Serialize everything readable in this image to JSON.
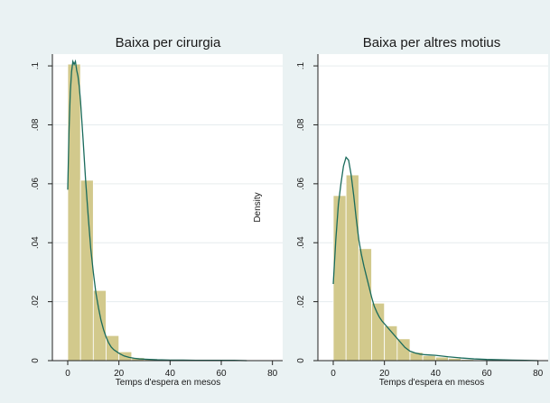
{
  "chart_data": [
    {
      "type": "bar",
      "title": "Baixa per cirurgia",
      "xlabel": "Temps d'espera en mesos",
      "ylabel": "",
      "xlim": [
        -6,
        84
      ],
      "ylim": [
        0,
        0.104
      ],
      "xticks": [
        0,
        20,
        40,
        60,
        80
      ],
      "xtick_labels": [
        "0",
        "20",
        "40",
        "60",
        "80"
      ],
      "yticks": [
        0,
        0.02,
        0.04,
        0.06,
        0.08,
        0.1
      ],
      "ytick_labels": [
        "0",
        ".02",
        ".04",
        ".06",
        ".08",
        ".1"
      ],
      "grid": true,
      "bin_width": 5,
      "bins": [
        {
          "x0": 0,
          "x1": 5,
          "value": 0.1006
        },
        {
          "x0": 5,
          "x1": 10,
          "value": 0.0612
        },
        {
          "x0": 10,
          "x1": 15,
          "value": 0.0238
        },
        {
          "x0": 15,
          "x1": 20,
          "value": 0.0085
        },
        {
          "x0": 20,
          "x1": 25,
          "value": 0.003
        },
        {
          "x0": 25,
          "x1": 30,
          "value": 0.001
        },
        {
          "x0": 30,
          "x1": 35,
          "value": 0.0006
        },
        {
          "x0": 35,
          "x1": 40,
          "value": 0.0004
        },
        {
          "x0": 40,
          "x1": 45,
          "value": 0.0003
        },
        {
          "x0": 45,
          "x1": 50,
          "value": 0.0002
        },
        {
          "x0": 50,
          "x1": 55,
          "value": 0.0001
        },
        {
          "x0": 55,
          "x1": 60,
          "value": 0.0001
        },
        {
          "x0": 60,
          "x1": 65,
          "value": 0.0001
        },
        {
          "x0": 65,
          "x1": 70,
          "value": 0.0001
        }
      ],
      "density_curve": {
        "x": [
          0,
          0.5,
          1,
          1.5,
          2,
          2.5,
          3,
          3.5,
          4,
          4.5,
          5,
          6,
          7,
          8,
          9,
          10,
          11,
          12,
          13,
          14,
          15,
          16,
          17,
          18,
          20,
          22,
          24,
          26,
          28,
          30,
          35,
          40,
          45,
          50,
          55,
          60,
          65,
          70
        ],
        "y": [
          0.058,
          0.078,
          0.091,
          0.098,
          0.1015,
          0.1005,
          0.1015,
          0.0985,
          0.0965,
          0.093,
          0.088,
          0.075,
          0.061,
          0.049,
          0.038,
          0.03,
          0.023,
          0.018,
          0.0137,
          0.0105,
          0.008,
          0.006,
          0.0046,
          0.0037,
          0.0025,
          0.0016,
          0.0011,
          0.0008,
          0.0006,
          0.0005,
          0.0003,
          0.0002,
          0.0002,
          0.0001,
          0.0001,
          0.0001,
          0.0001,
          0.0
        ]
      },
      "colors": {
        "bar_fill": "#d2c98c",
        "bar_stroke": "#ffffff",
        "curve": "#1a6b5c"
      }
    },
    {
      "type": "bar",
      "title": "Baixa per altres motius",
      "xlabel": "Temps d'espera en mesos",
      "ylabel": "Density",
      "xlim": [
        -6,
        84
      ],
      "ylim": [
        0,
        0.104
      ],
      "xticks": [
        0,
        20,
        40,
        60,
        80
      ],
      "xtick_labels": [
        "0",
        "20",
        "40",
        "60",
        "80"
      ],
      "yticks": [
        0,
        0.02,
        0.04,
        0.06,
        0.08,
        0.1
      ],
      "ytick_labels": [
        "0",
        ".02",
        ".04",
        ".06",
        ".08",
        ".1"
      ],
      "grid": true,
      "bin_width": 5,
      "bins": [
        {
          "x0": 0,
          "x1": 5,
          "value": 0.056
        },
        {
          "x0": 5,
          "x1": 10,
          "value": 0.063
        },
        {
          "x0": 10,
          "x1": 15,
          "value": 0.038
        },
        {
          "x0": 15,
          "x1": 20,
          "value": 0.0195
        },
        {
          "x0": 20,
          "x1": 25,
          "value": 0.0118
        },
        {
          "x0": 25,
          "x1": 30,
          "value": 0.0074
        },
        {
          "x0": 30,
          "x1": 35,
          "value": 0.0028
        },
        {
          "x0": 35,
          "x1": 40,
          "value": 0.0017
        },
        {
          "x0": 40,
          "x1": 45,
          "value": 0.0012
        },
        {
          "x0": 45,
          "x1": 50,
          "value": 0.0008
        },
        {
          "x0": 50,
          "x1": 55,
          "value": 0.0004
        },
        {
          "x0": 55,
          "x1": 60,
          "value": 0.0003
        },
        {
          "x0": 60,
          "x1": 65,
          "value": 0.0002
        },
        {
          "x0": 65,
          "x1": 70,
          "value": 0.0001
        },
        {
          "x0": 70,
          "x1": 75,
          "value": 0.0001
        },
        {
          "x0": 75,
          "x1": 80,
          "value": 0.0001
        }
      ],
      "density_curve": {
        "x": [
          0,
          1,
          2,
          3,
          4,
          5,
          6,
          7,
          8,
          9,
          10,
          11,
          12,
          13,
          14,
          15,
          16,
          17,
          18,
          19,
          20,
          22,
          24,
          26,
          28,
          30,
          32,
          34,
          36,
          38,
          40,
          45,
          50,
          55,
          60,
          65,
          70,
          75,
          80
        ],
        "y": [
          0.026,
          0.041,
          0.053,
          0.06,
          0.066,
          0.069,
          0.068,
          0.063,
          0.056,
          0.048,
          0.041,
          0.036,
          0.032,
          0.0285,
          0.025,
          0.0215,
          0.0185,
          0.0165,
          0.0148,
          0.0135,
          0.0125,
          0.0105,
          0.0085,
          0.0065,
          0.0045,
          0.0032,
          0.0026,
          0.0022,
          0.002,
          0.0019,
          0.0018,
          0.0013,
          0.0009,
          0.0006,
          0.0004,
          0.0003,
          0.0002,
          0.0001,
          0.0
        ]
      },
      "colors": {
        "bar_fill": "#d2c98c",
        "bar_stroke": "#ffffff",
        "curve": "#1a6b5c"
      }
    }
  ]
}
